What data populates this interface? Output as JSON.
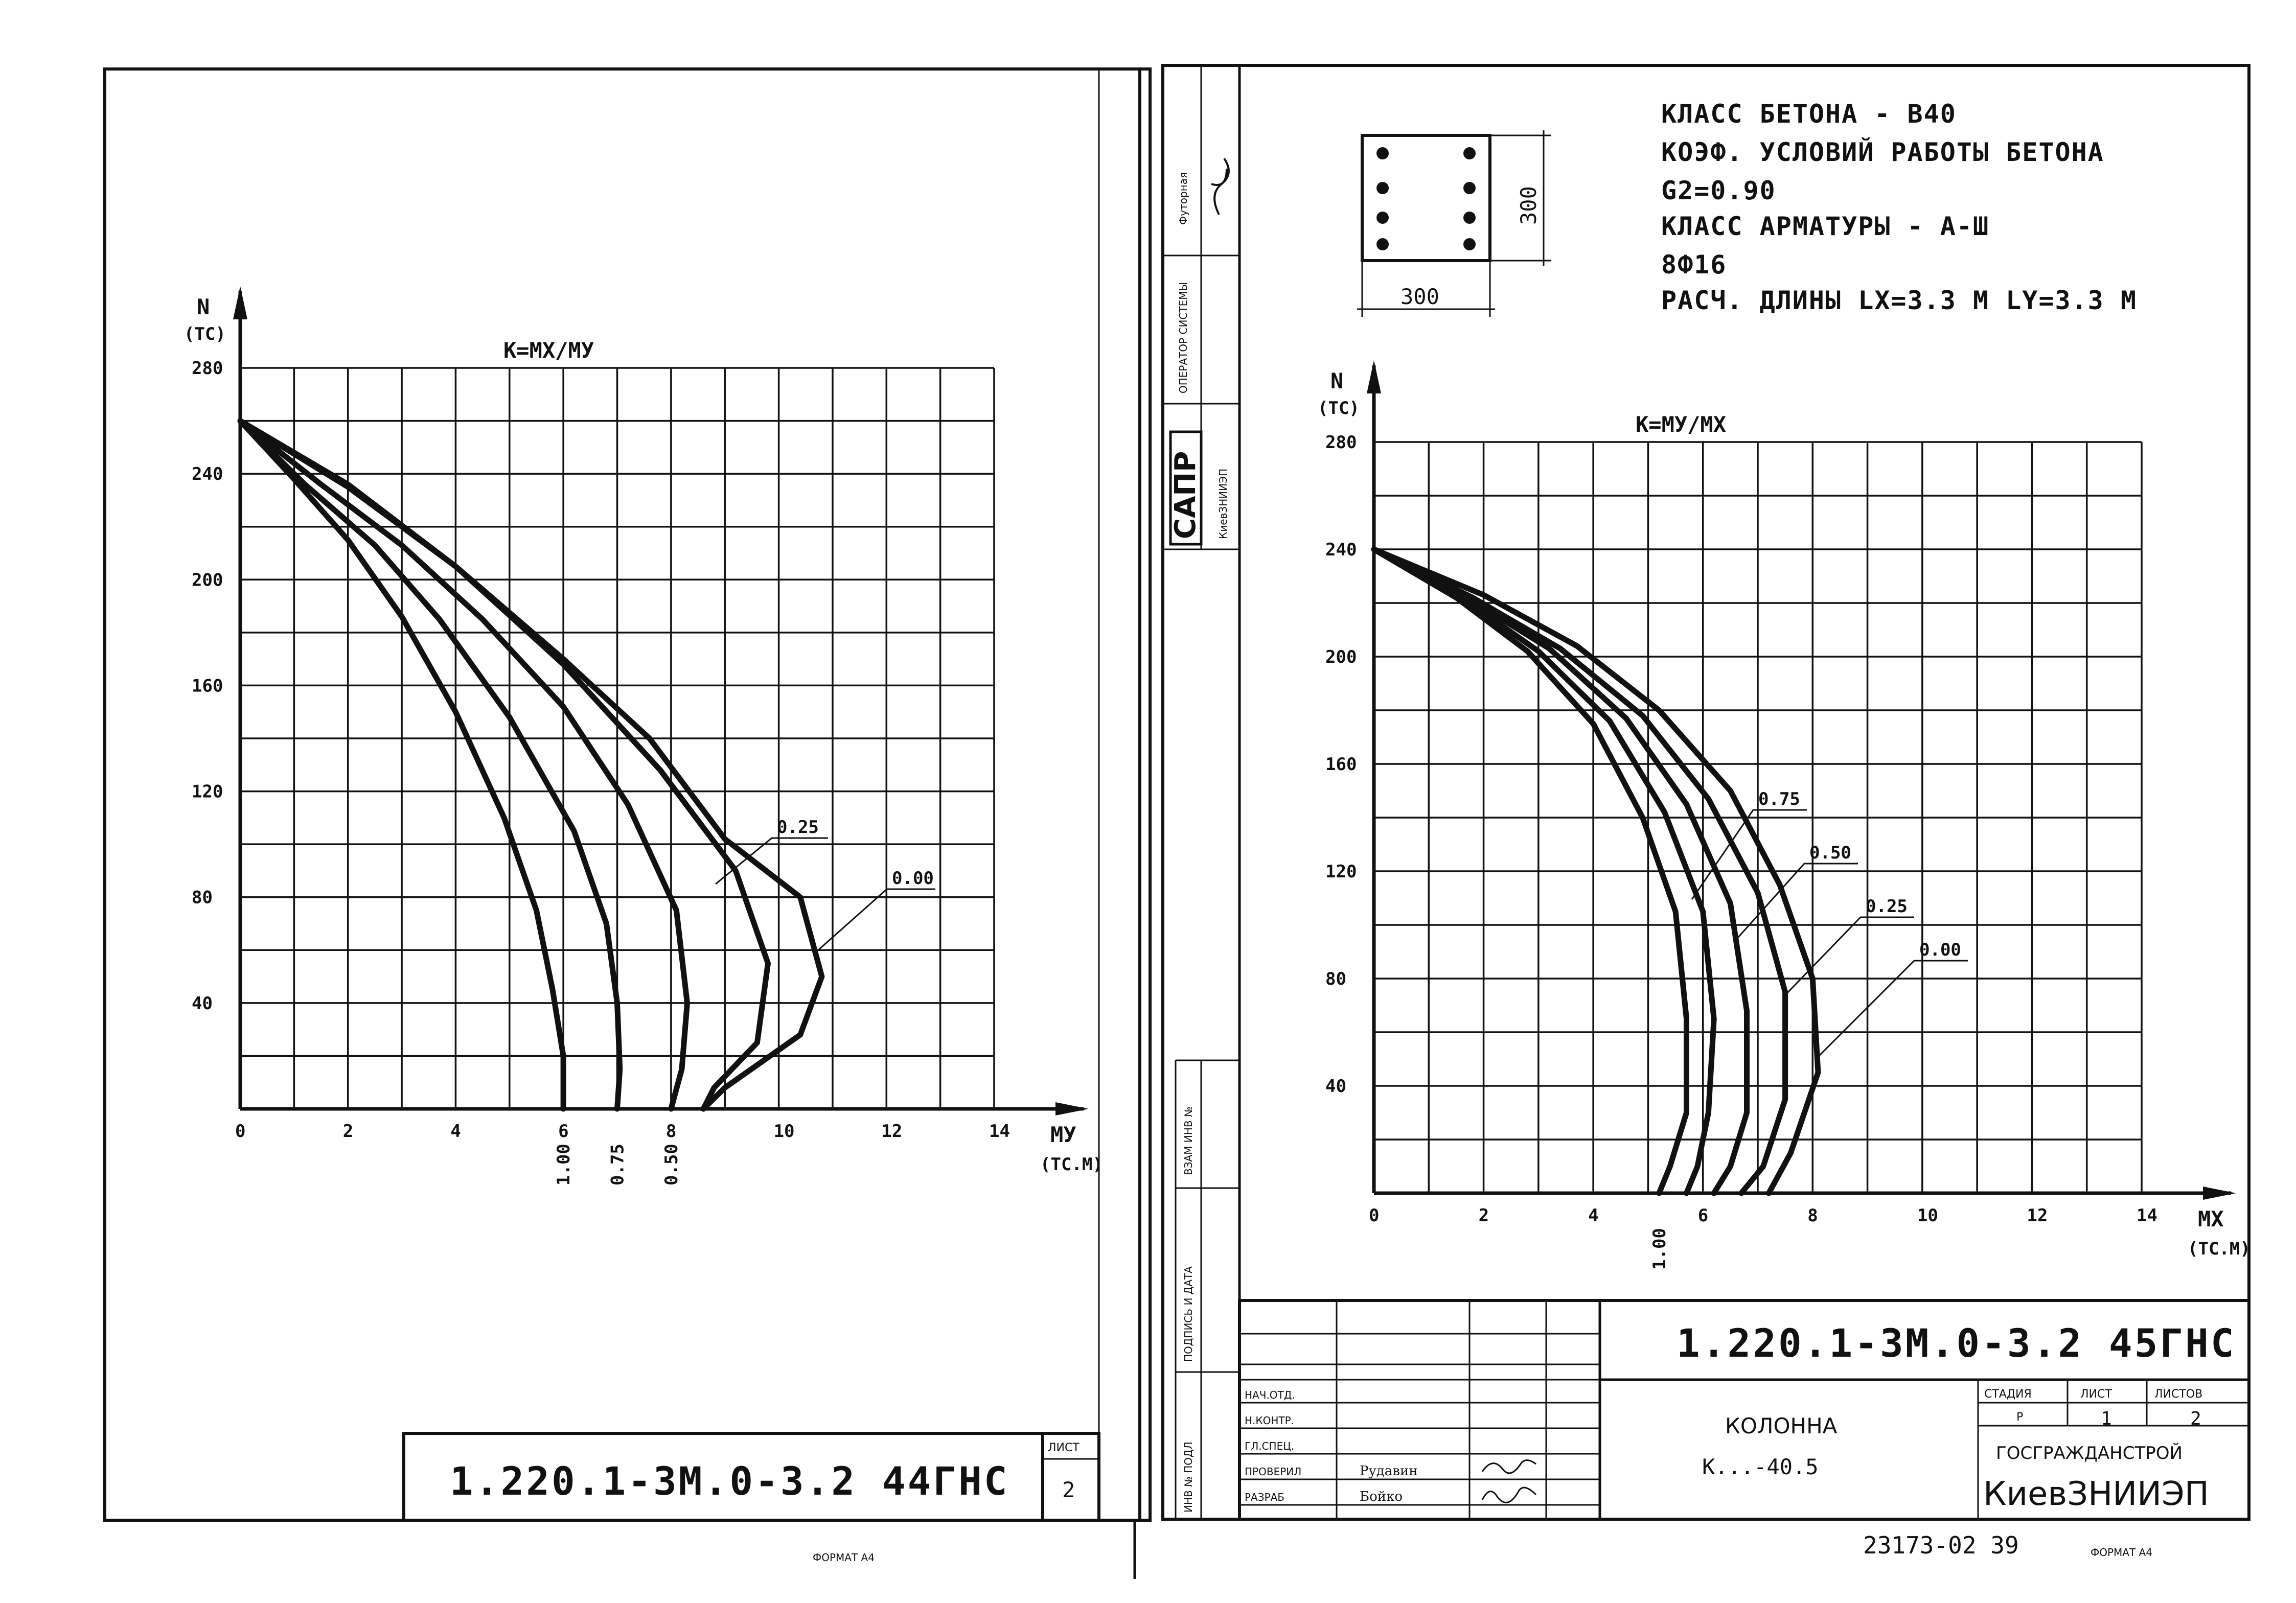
{
  "left_sheet": {
    "designation": "1.220.1-3М.0-3.2 44ГНС",
    "sheet_label": "ЛИСТ",
    "sheet_number": "2",
    "format": "ФОРМАТ А4"
  },
  "right_sheet": {
    "designation": "1.220.1-3М.0-3.2 45ГНС",
    "spec_lines": [
      "КЛАСС БЕТОНА - В40",
      "КОЭФ. УСЛОВИЙ РАБОТЫ БЕТОНА",
      "G2=0.90",
      "КЛАСС АРМАТУРЫ - А-Ш",
      "8Ф16",
      "РАСЧ. ДЛИНЫ  LX=3.3 М  LY=3.3 М"
    ],
    "section_width": "300",
    "section_height": "300",
    "element_name": "КОЛОННА",
    "element_mark": "К...-40.5",
    "stage_header": "СТАДИЯ",
    "sheet_header": "ЛИСТ",
    "sheets_header": "ЛИСТОВ",
    "stage": "Р",
    "sheet": "1",
    "sheets": "2",
    "org_line1": "ГОСГРАЖДАНСТРОЙ",
    "org_line2": "КиевЗНИИЭП",
    "roles": [
      "НАЧ.ОТД.",
      "Н.КОНТР.",
      "ГЛ.СПЕЦ.",
      "ПРОВЕРИЛ",
      "РАЗРАБ"
    ],
    "names": [
      "",
      "",
      "",
      "Рудавин",
      "Бойко"
    ],
    "order_number": "23173-02  39",
    "format": "ФОРМАТ А4",
    "side_stamp": {
      "copied": "Футорная",
      "operator": "ОПЕРАТОР СИСТЕМЫ",
      "sapr": "САПР",
      "sapr_org": "КиевЗНИИЭП",
      "vzam": "ВЗАМ ИНВ №",
      "podpis": "ПОДПИСЬ И ДАТА",
      "inv": "ИНВ № ПОДЛ"
    }
  },
  "chart_data": [
    {
      "type": "line",
      "title": "К=МХ/МУ",
      "xlabel": "МУ",
      "xunit": "(ТС.М)",
      "ylabel": "N",
      "yunit": "(ТС)",
      "xlim": [
        0,
        14
      ],
      "ylim": [
        0,
        280
      ],
      "x_ticks": [
        "0",
        "2",
        "4",
        "6",
        "8",
        "10",
        "12",
        "14"
      ],
      "y_ticks": [
        "40",
        "80",
        "120",
        "160",
        "200",
        "240",
        "280"
      ],
      "grid": true,
      "series": [
        {
          "name": "1.00",
          "label_position": "below-axis",
          "points": [
            [
              0,
              260
            ],
            [
              1,
              238
            ],
            [
              2,
              215
            ],
            [
              3,
              186
            ],
            [
              4,
              150
            ],
            [
              4.9,
              110
            ],
            [
              5.5,
              75
            ],
            [
              5.8,
              45
            ],
            [
              6,
              20
            ],
            [
              6,
              0
            ]
          ]
        },
        {
          "name": "0.75",
          "label_position": "below-axis",
          "points": [
            [
              0,
              260
            ],
            [
              1.2,
              236
            ],
            [
              2.5,
              213
            ],
            [
              3.7,
              185
            ],
            [
              5,
              148
            ],
            [
              6.2,
              105
            ],
            [
              6.8,
              70
            ],
            [
              7,
              40
            ],
            [
              7.05,
              15
            ],
            [
              7,
              0
            ]
          ]
        },
        {
          "name": "0.50",
          "label_position": "below-axis",
          "points": [
            [
              0,
              260
            ],
            [
              1.5,
              236
            ],
            [
              3,
              213
            ],
            [
              4.5,
              185
            ],
            [
              6,
              152
            ],
            [
              7.2,
              115
            ],
            [
              8.1,
              75
            ],
            [
              8.3,
              40
            ],
            [
              8.2,
              15
            ],
            [
              8,
              0
            ]
          ]
        },
        {
          "name": "0.25",
          "label_position": "leader",
          "points": [
            [
              0,
              260
            ],
            [
              2,
              235
            ],
            [
              4,
              205
            ],
            [
              6,
              168
            ],
            [
              7.8,
              128
            ],
            [
              9.2,
              90
            ],
            [
              9.8,
              55
            ],
            [
              9.6,
              25
            ],
            [
              8.8,
              8
            ],
            [
              8.6,
              0
            ]
          ]
        },
        {
          "name": "0.00",
          "label_position": "leader",
          "points": [
            [
              0,
              260
            ],
            [
              2,
              236
            ],
            [
              4,
              205
            ],
            [
              6,
              170
            ],
            [
              7.6,
              140
            ],
            [
              9,
              102
            ],
            [
              10.4,
              80
            ],
            [
              10.8,
              50
            ],
            [
              10.4,
              28
            ],
            [
              9,
              8
            ],
            [
              8.6,
              0
            ]
          ]
        }
      ]
    },
    {
      "type": "line",
      "title": "К=МУ/МХ",
      "xlabel": "МХ",
      "xunit": "(ТС.М)",
      "ylabel": "N",
      "yunit": "(ТС)",
      "xlim": [
        0,
        14
      ],
      "ylim": [
        0,
        280
      ],
      "x_ticks": [
        "0",
        "2",
        "4",
        "6",
        "8",
        "10",
        "12",
        "14"
      ],
      "y_ticks": [
        "40",
        "80",
        "120",
        "160",
        "200",
        "240",
        "280"
      ],
      "grid": true,
      "series": [
        {
          "name": "1.00",
          "label_position": "below-axis",
          "points": [
            [
              0,
              240
            ],
            [
              1.5,
              222
            ],
            [
              2.8,
              202
            ],
            [
              4,
              175
            ],
            [
              4.9,
              140
            ],
            [
              5.5,
              105
            ],
            [
              5.7,
              65
            ],
            [
              5.7,
              30
            ],
            [
              5.4,
              10
            ],
            [
              5.2,
              0
            ]
          ]
        },
        {
          "name": "0.75",
          "label_position": "leader",
          "points": [
            [
              0,
              240
            ],
            [
              1.6,
              222
            ],
            [
              3,
              202
            ],
            [
              4.3,
              176
            ],
            [
              5.3,
              142
            ],
            [
              6,
              105
            ],
            [
              6.2,
              65
            ],
            [
              6.1,
              30
            ],
            [
              5.9,
              10
            ],
            [
              5.7,
              0
            ]
          ]
        },
        {
          "name": "0.50",
          "label_position": "leader",
          "points": [
            [
              0,
              240
            ],
            [
              1.7,
              222
            ],
            [
              3.2,
              203
            ],
            [
              4.6,
              177
            ],
            [
              5.7,
              145
            ],
            [
              6.5,
              108
            ],
            [
              6.8,
              68
            ],
            [
              6.8,
              30
            ],
            [
              6.5,
              10
            ],
            [
              6.2,
              0
            ]
          ]
        },
        {
          "name": "0.25",
          "label_position": "leader",
          "points": [
            [
              0,
              240
            ],
            [
              1.8,
              222
            ],
            [
              3.4,
              203
            ],
            [
              4.9,
              178
            ],
            [
              6.1,
              147
            ],
            [
              7,
              112
            ],
            [
              7.5,
              75
            ],
            [
              7.5,
              35
            ],
            [
              7.1,
              10
            ],
            [
              6.7,
              0
            ]
          ]
        },
        {
          "name": "0.00",
          "label_position": "leader",
          "points": [
            [
              0,
              240
            ],
            [
              2,
              223
            ],
            [
              3.7,
              204
            ],
            [
              5.2,
              180
            ],
            [
              6.5,
              150
            ],
            [
              7.4,
              115
            ],
            [
              8,
              80
            ],
            [
              8.1,
              45
            ],
            [
              7.6,
              15
            ],
            [
              7.2,
              0
            ]
          ]
        }
      ]
    }
  ]
}
